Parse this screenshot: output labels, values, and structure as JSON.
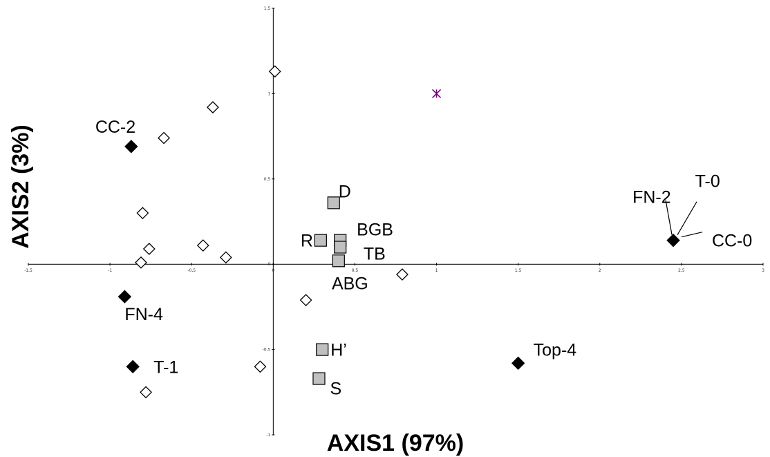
{
  "chart_data": {
    "type": "scatter",
    "title": "",
    "xlabel": "AXIS1 (97%)",
    "ylabel": "AXIS2 (3%)",
    "xlim": [
      -1.5,
      3
    ],
    "ylim": [
      -1,
      1.5
    ],
    "grid": false,
    "legend": "none",
    "x_ticks": [
      "-1,5",
      "-1",
      "-0,5",
      "0",
      "0,5",
      "1",
      "1,5",
      "2",
      "2,5",
      "3"
    ],
    "y_ticks": [
      "1,5",
      "1",
      "0,5",
      "0",
      "-0,5",
      "-1"
    ],
    "x_tick_values": [
      -1.5,
      -1,
      -0.5,
      0,
      0.5,
      1,
      1.5,
      2,
      2.5,
      3
    ],
    "y_tick_values": [
      1.5,
      1,
      0.5,
      0,
      -0.5,
      -1
    ],
    "colors": {
      "filled": "#000000",
      "square_fill": "#c0c0c0",
      "star": "#800080"
    },
    "points": {
      "open_diamonds": [
        {
          "x": 0.01,
          "y": 1.13
        },
        {
          "x": -0.37,
          "y": 0.92
        },
        {
          "x": -0.67,
          "y": 0.74
        },
        {
          "x": -0.8,
          "y": 0.3
        },
        {
          "x": -0.76,
          "y": 0.09
        },
        {
          "x": -0.81,
          "y": 0.01
        },
        {
          "x": -0.43,
          "y": 0.11
        },
        {
          "x": -0.29,
          "y": 0.04
        },
        {
          "x": 0.79,
          "y": -0.06
        },
        {
          "x": 0.2,
          "y": -0.21
        },
        {
          "x": -0.08,
          "y": -0.6
        },
        {
          "x": -0.78,
          "y": -0.75
        }
      ],
      "filled_diamonds": [
        {
          "x": -0.87,
          "y": 0.69,
          "label": "CC-2"
        },
        {
          "x": -0.91,
          "y": -0.19,
          "label": "FN-4"
        },
        {
          "x": -0.86,
          "y": -0.6,
          "label": "T-1"
        },
        {
          "x": 2.45,
          "y": 0.14,
          "label": "FN-2"
        },
        {
          "x": 1.5,
          "y": -0.58,
          "label": "Top-4"
        }
      ],
      "squares": [
        {
          "x": 0.37,
          "y": 0.36,
          "label": "D"
        },
        {
          "x": 0.29,
          "y": 0.14,
          "label": "R"
        },
        {
          "x": 0.41,
          "y": 0.14
        },
        {
          "x": 0.41,
          "y": 0.1,
          "label": "BGB"
        },
        {
          "x": 0.4,
          "y": 0.02,
          "label": "TB"
        },
        {
          "x": 0.3,
          "y": -0.5,
          "label": "H’"
        },
        {
          "x": 0.28,
          "y": -0.67,
          "label": "S"
        }
      ],
      "stars": [
        {
          "x": 1.0,
          "y": 1.0
        }
      ]
    },
    "annotations": [
      {
        "text": "ABG",
        "x": 0.47,
        "y": -0.11
      },
      {
        "text": "T-0",
        "x": 2.66,
        "y": 0.49
      },
      {
        "text": "CC-0",
        "x": 2.81,
        "y": 0.14
      }
    ]
  }
}
